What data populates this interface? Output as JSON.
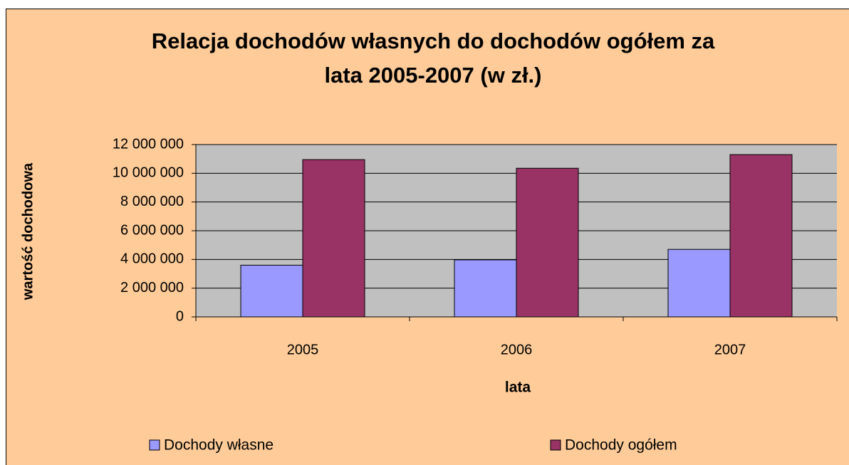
{
  "chart_data": {
    "type": "bar",
    "title": [
      "Relacja dochodów własnych do dochodów ogółem za",
      "lata 2005-2007 (w zł.)"
    ],
    "xlabel": "lata",
    "ylabel": "wartość dochodowa",
    "categories": [
      "2005",
      "2006",
      "2007"
    ],
    "series": [
      {
        "name": "Dochody własne",
        "color": "#9999ff",
        "values": [
          3600000,
          3970000,
          4700000
        ]
      },
      {
        "name": "Dochody ogółem",
        "color": "#993366",
        "values": [
          10950000,
          10350000,
          11300000
        ]
      }
    ],
    "ylim": [
      0,
      12000000
    ],
    "yticks": [
      0,
      {
        "value": 2000000,
        "label": "2 000 000"
      },
      {
        "value": 4000000,
        "label": "4 000 000"
      },
      {
        "value": 6000000,
        "label": "6 000 000"
      },
      {
        "value": 8000000,
        "label": "8 000 000"
      },
      {
        "value": 10000000,
        "label": "10 000 000"
      },
      {
        "value": 12000000,
        "label": "12 000 000"
      }
    ],
    "grid": true,
    "legend": "bottom"
  }
}
